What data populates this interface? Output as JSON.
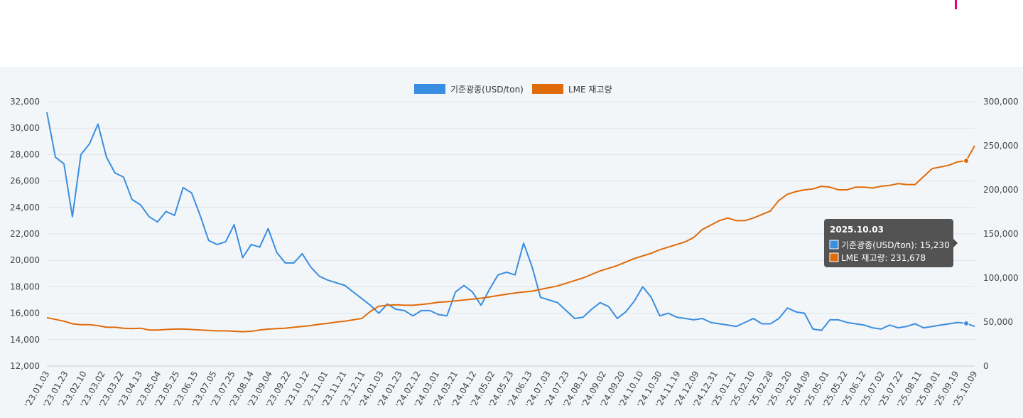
{
  "colors": {
    "copper": "#3a8ee0",
    "lme": "#e06b0a",
    "accent": "#e6007e"
  },
  "chart_data": {
    "type": "line",
    "legend_position": "top-center",
    "grid": true,
    "y_left": {
      "ylim": [
        12000,
        32000
      ],
      "ticks": [
        "12,000",
        "14,000",
        "16,000",
        "18,000",
        "20,000",
        "22,000",
        "24,000",
        "26,000",
        "28,000",
        "30,000",
        "32,000"
      ]
    },
    "y_right": {
      "ylim": [
        0,
        300000
      ],
      "ticks": [
        "0",
        "50,000",
        "100,000",
        "150,000",
        "200,000",
        "250,000",
        "300,000"
      ]
    },
    "x_ticks": [
      "'23.01.03",
      "'23.01.23",
      "'23.02.10",
      "'23.03.02",
      "'23.03.22",
      "'23.04.13",
      "'23.05.04",
      "'23.05.25",
      "'23.06.15",
      "'23.07.05",
      "'23.07.25",
      "'23.08.14",
      "'23.09.04",
      "'23.09.22",
      "'23.10.12",
      "'23.11.01",
      "'23.11.21",
      "'23.12.11",
      "'24.01.03",
      "'24.01.23",
      "'24.02.12",
      "'24.03.01",
      "'24.03.21",
      "'24.04.12",
      "'24.05.02",
      "'24.05.23",
      "'24.06.13",
      "'24.07.03",
      "'24.07.23",
      "'24.08.12",
      "'24.09.02",
      "'24.09.20",
      "'24.10.10",
      "'24.10.30",
      "'24.11.19",
      "'24.12.09",
      "'24.12.31",
      "'25.01.21",
      "'25.02.10",
      "'25.02.28",
      "'25.03.20",
      "'25.04.09",
      "'25.05.01",
      "'25.05.22",
      "'25.06.12",
      "'25.07.02",
      "'25.07.22",
      "'25.08.11",
      "'25.09.01",
      "'25.09.19",
      "'25.10.09"
    ],
    "series": [
      {
        "name": "기준광종(USD/ton)",
        "axis": "left",
        "values": [
          31200,
          27800,
          27300,
          23300,
          28000,
          28800,
          30300,
          27800,
          26600,
          26300,
          24600,
          24200,
          23300,
          22900,
          23700,
          23400,
          25500,
          25100,
          23400,
          21500,
          21200,
          21400,
          22700,
          20200,
          21200,
          21000,
          22400,
          20600,
          19800,
          19800,
          20500,
          19500,
          18800,
          18500,
          18300,
          18100,
          17600,
          17100,
          16600,
          16000,
          16700,
          16300,
          16200,
          15800,
          16200,
          16200,
          15900,
          15800,
          17600,
          18100,
          17600,
          16600,
          17800,
          18900,
          19100,
          18900,
          21300,
          19500,
          17200,
          17000,
          16800,
          16200,
          15600,
          15700,
          16300,
          16800,
          16500,
          15600,
          16100,
          16900,
          18000,
          17200,
          15800,
          16000,
          15700,
          15600,
          15500,
          15600,
          15300,
          15200,
          15100,
          15000,
          15300,
          15600,
          15200,
          15200,
          15600,
          16400,
          16100,
          16000,
          14800,
          14700,
          15500,
          15500,
          15300,
          15200,
          15100,
          14900,
          14800,
          15100,
          14900,
          15000,
          15200,
          14900,
          15000,
          15100,
          15200,
          15300,
          15230,
          15000
        ]
      },
      {
        "name": "LME 재고량",
        "axis": "right",
        "values": [
          55000,
          53000,
          51000,
          48000,
          47000,
          47000,
          46000,
          44000,
          44000,
          43000,
          42500,
          43000,
          41000,
          41000,
          41500,
          42000,
          42000,
          41500,
          41000,
          40500,
          40000,
          40000,
          39500,
          39000,
          39500,
          41000,
          42000,
          42500,
          43000,
          44000,
          45000,
          46000,
          47500,
          48500,
          50000,
          51000,
          52500,
          54000,
          62000,
          68000,
          69000,
          69500,
          69000,
          69000,
          70000,
          71000,
          72500,
          73000,
          74000,
          75000,
          76000,
          77000,
          78500,
          80000,
          81500,
          83000,
          84000,
          85000,
          87000,
          89000,
          91000,
          94000,
          97000,
          100000,
          104000,
          108000,
          111000,
          114000,
          118000,
          122000,
          125000,
          128000,
          132000,
          135000,
          138000,
          141000,
          146000,
          155000,
          160000,
          165000,
          168000,
          165000,
          165000,
          168000,
          172000,
          176000,
          188000,
          195000,
          198000,
          200000,
          201000,
          204000,
          203000,
          200000,
          200000,
          203000,
          203000,
          202000,
          204000,
          205000,
          207000,
          206000,
          206000,
          215000,
          224000,
          226000,
          228000,
          231678,
          233000,
          250000
        ]
      }
    ],
    "highlight": {
      "index": 108
    },
    "tooltip": {
      "date": "2025.10.03",
      "line1": "기준광종(USD/ton): 15,230",
      "line2": "LME 재고량: 231,678"
    }
  }
}
